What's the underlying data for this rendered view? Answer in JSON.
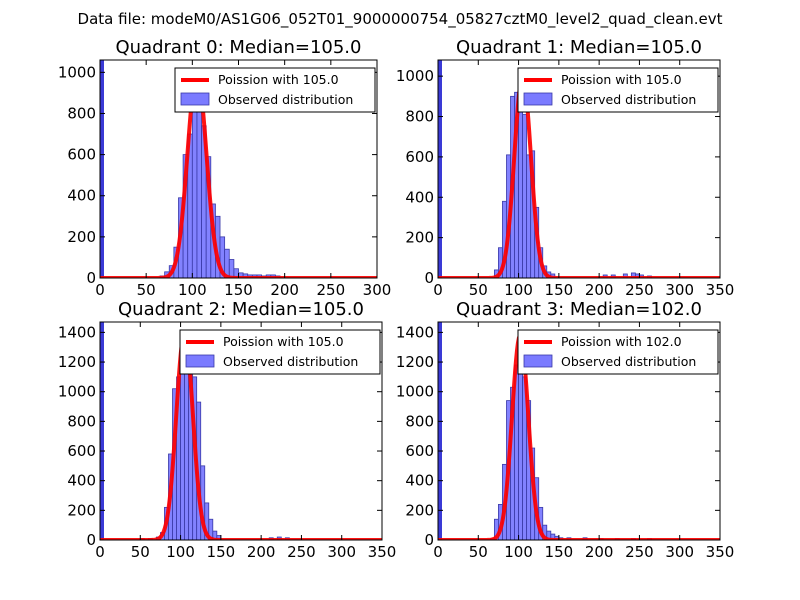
{
  "suptitle": "Data file: modeM0/AS1G06_052T01_9000000754_05827cztM0_level2_quad_clean.evt",
  "chart_data": [
    {
      "type": "bar",
      "title": "Quadrant 0: Median=105.0",
      "xlim": [
        0,
        300
      ],
      "ylim": [
        0,
        1060
      ],
      "xticks": [
        0,
        50,
        100,
        150,
        200,
        250,
        300
      ],
      "xtick_labels": [
        "0",
        "50",
        "100",
        "150",
        "200",
        "250",
        "300"
      ],
      "yticks": [
        0,
        200,
        400,
        600,
        800,
        1000
      ],
      "ytick_labels": [
        "0",
        "200",
        "400",
        "600",
        "800",
        "1000"
      ],
      "spike": {
        "x": 0,
        "value": 1060
      },
      "bin_width": 5,
      "bins": [
        [
          65,
          10
        ],
        [
          70,
          30
        ],
        [
          75,
          60
        ],
        [
          80,
          150
        ],
        [
          85,
          390
        ],
        [
          90,
          600
        ],
        [
          95,
          700
        ],
        [
          100,
          940
        ],
        [
          105,
          990
        ],
        [
          110,
          740
        ],
        [
          115,
          590
        ],
        [
          120,
          360
        ],
        [
          125,
          300
        ],
        [
          130,
          200
        ],
        [
          135,
          140
        ],
        [
          140,
          90
        ],
        [
          145,
          45
        ],
        [
          150,
          25
        ],
        [
          155,
          20
        ],
        [
          160,
          15
        ],
        [
          165,
          15
        ],
        [
          170,
          15
        ],
        [
          175,
          10
        ],
        [
          180,
          15
        ],
        [
          185,
          15
        ],
        [
          190,
          10
        ]
      ],
      "poisson_mean": 105.0,
      "poisson_peak": 1000,
      "legend": [
        "Poission with 105.0",
        "Observed distribution"
      ]
    },
    {
      "type": "bar",
      "title": "Quadrant 1: Median=105.0",
      "xlim": [
        0,
        350
      ],
      "ylim": [
        0,
        1080
      ],
      "xticks": [
        0,
        50,
        100,
        150,
        200,
        250,
        300,
        350
      ],
      "xtick_labels": [
        "0",
        "50",
        "100",
        "150",
        "200",
        "250",
        "300",
        "350"
      ],
      "yticks": [
        0,
        200,
        400,
        600,
        800,
        1000
      ],
      "ytick_labels": [
        "0",
        "200",
        "400",
        "600",
        "800",
        "1000"
      ],
      "spike": {
        "x": 0,
        "value": 1080
      },
      "bin_width": 5,
      "bins": [
        [
          70,
          40
        ],
        [
          75,
          150
        ],
        [
          80,
          380
        ],
        [
          85,
          610
        ],
        [
          90,
          900
        ],
        [
          95,
          920
        ],
        [
          100,
          1010
        ],
        [
          105,
          810
        ],
        [
          110,
          610
        ],
        [
          115,
          630
        ],
        [
          120,
          350
        ],
        [
          125,
          150
        ],
        [
          130,
          60
        ],
        [
          135,
          30
        ],
        [
          140,
          20
        ],
        [
          205,
          15
        ],
        [
          215,
          15
        ],
        [
          230,
          20
        ],
        [
          240,
          25
        ],
        [
          245,
          20
        ],
        [
          250,
          15
        ],
        [
          260,
          10
        ]
      ],
      "poisson_mean": 105.0,
      "poisson_peak": 1000,
      "legend": [
        "Poission with 105.0",
        "Observed distribution"
      ]
    },
    {
      "type": "bar",
      "title": "Quadrant 2: Median=105.0",
      "xlim": [
        0,
        350
      ],
      "ylim": [
        0,
        1470
      ],
      "xticks": [
        0,
        50,
        100,
        150,
        200,
        250,
        300,
        350
      ],
      "xtick_labels": [
        "0",
        "50",
        "100",
        "150",
        "200",
        "250",
        "300",
        "350"
      ],
      "yticks": [
        0,
        200,
        400,
        600,
        800,
        1000,
        1200,
        1400
      ],
      "ytick_labels": [
        "0",
        "200",
        "400",
        "600",
        "800",
        "1000",
        "1200",
        "1400"
      ],
      "spike": {
        "x": 0,
        "value": 1470
      },
      "bin_width": 5,
      "bins": [
        [
          50,
          10
        ],
        [
          60,
          10
        ],
        [
          70,
          20
        ],
        [
          75,
          50
        ],
        [
          80,
          220
        ],
        [
          85,
          580
        ],
        [
          90,
          1020
        ],
        [
          95,
          1100
        ],
        [
          100,
          1180
        ],
        [
          105,
          1290
        ],
        [
          110,
          1250
        ],
        [
          115,
          1100
        ],
        [
          120,
          930
        ],
        [
          125,
          500
        ],
        [
          130,
          250
        ],
        [
          135,
          140
        ],
        [
          140,
          60
        ],
        [
          145,
          30
        ],
        [
          210,
          15
        ],
        [
          220,
          20
        ],
        [
          230,
          15
        ]
      ],
      "poisson_mean": 105.0,
      "poisson_peak": 1400,
      "legend": [
        "Poission with 105.0",
        "Observed distribution"
      ]
    },
    {
      "type": "bar",
      "title": "Quadrant 3: Median=102.0",
      "xlim": [
        0,
        350
      ],
      "ylim": [
        0,
        1470
      ],
      "xticks": [
        0,
        50,
        100,
        150,
        200,
        250,
        300,
        350
      ],
      "xtick_labels": [
        "0",
        "50",
        "100",
        "150",
        "200",
        "250",
        "300",
        "350"
      ],
      "yticks": [
        0,
        200,
        400,
        600,
        800,
        1000,
        1200,
        1400
      ],
      "ytick_labels": [
        "0",
        "200",
        "400",
        "600",
        "800",
        "1000",
        "1200",
        "1400"
      ],
      "spike": {
        "x": 0,
        "value": 1470
      },
      "bin_width": 5,
      "bins": [
        [
          65,
          10
        ],
        [
          70,
          140
        ],
        [
          75,
          240
        ],
        [
          80,
          510
        ],
        [
          85,
          940
        ],
        [
          90,
          1030
        ],
        [
          95,
          1180
        ],
        [
          100,
          1290
        ],
        [
          105,
          1100
        ],
        [
          110,
          940
        ],
        [
          115,
          620
        ],
        [
          120,
          420
        ],
        [
          125,
          220
        ],
        [
          130,
          100
        ],
        [
          135,
          60
        ],
        [
          140,
          40
        ],
        [
          145,
          25
        ],
        [
          150,
          15
        ],
        [
          160,
          15
        ],
        [
          180,
          15
        ],
        [
          200,
          10
        ],
        [
          220,
          10
        ],
        [
          240,
          10
        ],
        [
          260,
          10
        ]
      ],
      "poisson_mean": 102.0,
      "poisson_peak": 1380,
      "legend": [
        "Poission with 102.0",
        "Observed distribution"
      ]
    }
  ]
}
